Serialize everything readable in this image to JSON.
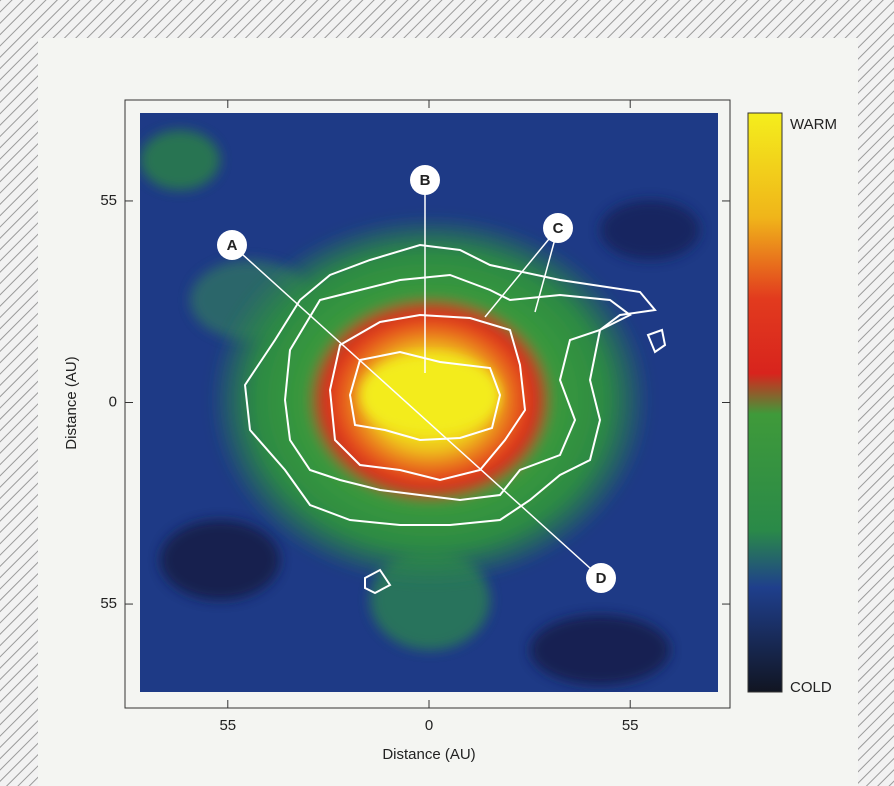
{
  "chart_data": {
    "type": "heatmap",
    "xlabel": "Distance (AU)",
    "ylabel": "Distance (AU)",
    "xlim": [
      -79,
      79
    ],
    "ylim": [
      -79,
      79
    ],
    "xticks": [
      {
        "value": -55,
        "label": "55"
      },
      0,
      55
    ],
    "yticks": [
      {
        "value": -55,
        "label": "55"
      },
      0,
      55
    ],
    "colorbar": {
      "top_label": "WARM",
      "bottom_label": "COLD"
    },
    "annotations": [
      "A",
      "B",
      "C",
      "D"
    ]
  }
}
